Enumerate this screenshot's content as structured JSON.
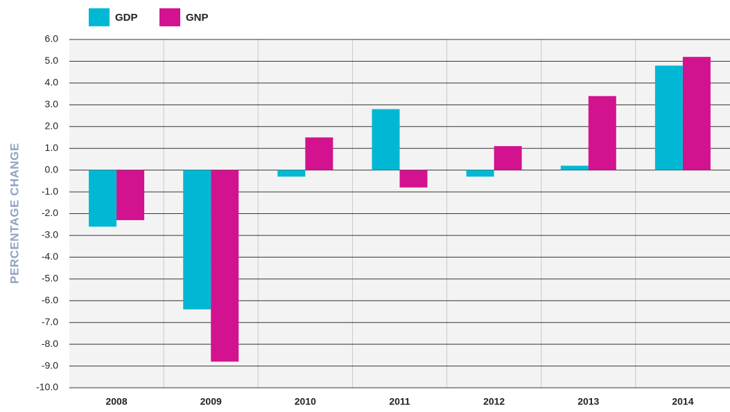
{
  "chart_data": {
    "type": "bar",
    "y_label": "PERCENTAGE CHANGE",
    "categories": [
      "2008",
      "2009",
      "2010",
      "2011",
      "2012",
      "2013",
      "2014"
    ],
    "series": [
      {
        "name": "GDP",
        "color": "#00b8d4",
        "values": [
          -2.6,
          -6.4,
          -0.3,
          2.8,
          -0.3,
          0.2,
          4.8
        ]
      },
      {
        "name": "GNP",
        "color": "#d3128f",
        "values": [
          -2.3,
          -8.8,
          1.5,
          -0.8,
          1.1,
          3.4,
          5.2
        ]
      }
    ],
    "ylim": [
      -10,
      6
    ],
    "yticks": [
      {
        "value": 6,
        "label": "6.0"
      },
      {
        "value": 5,
        "label": "5.0"
      },
      {
        "value": 4,
        "label": "4.0"
      },
      {
        "value": 3,
        "label": "3.0"
      },
      {
        "value": 2,
        "label": "2.0"
      },
      {
        "value": 1,
        "label": "1.0"
      },
      {
        "value": 0,
        "label": "0.0"
      },
      {
        "value": -1,
        "label": "-1.0"
      },
      {
        "value": -2,
        "label": "-2.0"
      },
      {
        "value": -3,
        "label": "-3.0"
      },
      {
        "value": -4,
        "label": "-4.0"
      },
      {
        "value": -5,
        "label": "-5.0"
      },
      {
        "value": -6,
        "label": "-6.0"
      },
      {
        "value": -7,
        "label": "-7.0"
      },
      {
        "value": -8,
        "label": "-8.0"
      },
      {
        "value": -9,
        "label": "-9.0"
      },
      {
        "value": -10,
        "label": "-10.0"
      }
    ],
    "grid": true
  }
}
